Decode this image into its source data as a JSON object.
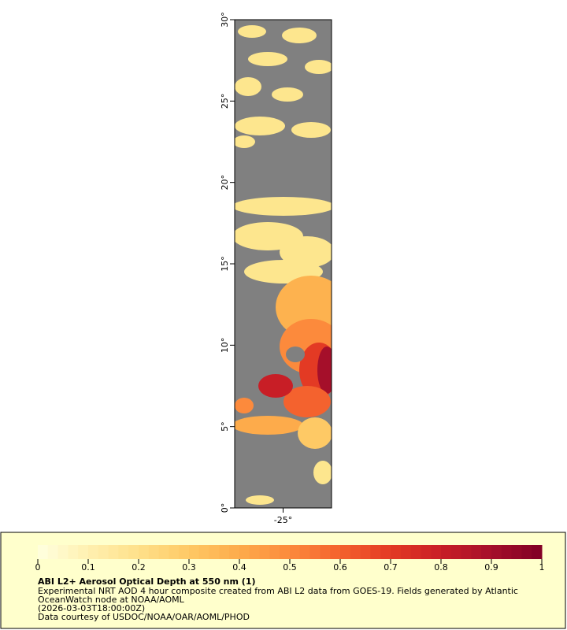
{
  "map": {
    "latlim": [
      0,
      30
    ],
    "lonlim": [
      -28,
      -22
    ],
    "lat_ticks": [
      {
        "value": 0,
        "label": "0°"
      },
      {
        "value": 5,
        "label": "5°"
      },
      {
        "value": 10,
        "label": "10°"
      },
      {
        "value": 15,
        "label": "15°"
      },
      {
        "value": 20,
        "label": "20°"
      },
      {
        "value": 25,
        "label": "25°"
      },
      {
        "value": 30,
        "label": "30°"
      }
    ],
    "lon_ticks": [
      {
        "value": -25,
        "label": "-25°"
      }
    ]
  },
  "colorbar": {
    "range": [
      0,
      1
    ],
    "ticks": [
      0,
      0.1,
      0.2,
      0.3,
      0.4,
      0.5,
      0.6,
      0.7,
      0.8,
      0.9,
      1
    ],
    "colors": [
      "#ffffe0",
      "#fff0b0",
      "#fee08a",
      "#fec965",
      "#fdab4b",
      "#fc8a3c",
      "#f4622e",
      "#e33a24",
      "#c81e26",
      "#a50f2a",
      "#800026"
    ]
  },
  "legend": {
    "title": "ABI L2+ Aerosol Optical Depth at 550 nm (1)",
    "lines": [
      "Experimental NRT AOD 4 hour composite created from ABI L2 data from GOES-19. Fields generated by Atlantic",
      "OceanWatch node at NOAA/AOML",
      "(2026-03-03T18:00:00Z)",
      "Data courtesy of USDOC/NOAA/OAR/AOML/PHOD"
    ]
  }
}
